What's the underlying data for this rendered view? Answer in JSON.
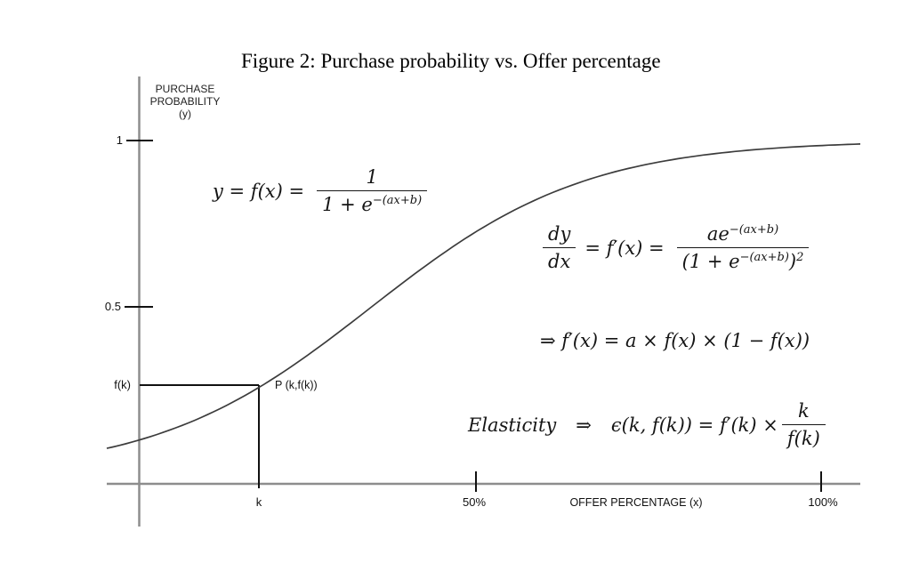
{
  "title": "Figure 2: Purchase probability vs. Offer percentage",
  "axes": {
    "y_label_lines": [
      "PURCHASE",
      "PROBABILITY",
      "(y)"
    ],
    "x_label": "OFFER PERCENTAGE (x)",
    "y_ticks": {
      "one": "1",
      "half": "0.5",
      "fk": "f(k)"
    },
    "x_ticks": {
      "k": "k",
      "fifty": "50%",
      "hundred": "100%"
    }
  },
  "point": {
    "label": "P (k,f(k))"
  },
  "formulas": {
    "sigmoid": {
      "lhs": "y = f(x) =",
      "num": "1",
      "den_base": "1 + e",
      "den_sup": "−(ax+b)"
    },
    "derivative": {
      "lhs_num": "dy",
      "lhs_den": "dx",
      "mid": "= f′(x) =",
      "num_base": "ae",
      "num_sup": "−(ax+b)",
      "den_open": "(1 + e",
      "den_sup": "−(ax+b)",
      "den_close": ")",
      "den_pow": "2"
    },
    "simplified": "⇒ f′(x) = a × f(x) × (1 − f(x))",
    "elasticity": {
      "label": "Elasticity",
      "arrow": "⇒",
      "body": "ϵ(k, f(k)) = f′(k) ×",
      "num": "k",
      "den": "f(k)"
    }
  },
  "chart_data": {
    "type": "line",
    "title": "Figure 2: Purchase probability vs. Offer percentage",
    "xlabel": "OFFER PERCENTAGE (x)",
    "ylabel": "PURCHASE PROBABILITY (y)",
    "x_tick_labels": [
      "k",
      "50%",
      "100%"
    ],
    "y_tick_labels": [
      "f(k)",
      "0.5",
      "1"
    ],
    "ylim": [
      0,
      1
    ],
    "grid": false,
    "legend": false,
    "curve": {
      "form": "y = 1/(1 + e^−(ax+b))",
      "midpoint_t": 0.35,
      "steepness": 7,
      "samples": 120
    },
    "marked_point": {
      "x_label": "k",
      "y_label": "f(k)",
      "t": 0.202,
      "y": 0.27,
      "label": "P (k,f(k))"
    }
  },
  "colors": {
    "background": "#ffffff",
    "axis": "#8d8d8d",
    "curve": "#3c3c3c",
    "marker": "#111111",
    "text": "#111111"
  }
}
